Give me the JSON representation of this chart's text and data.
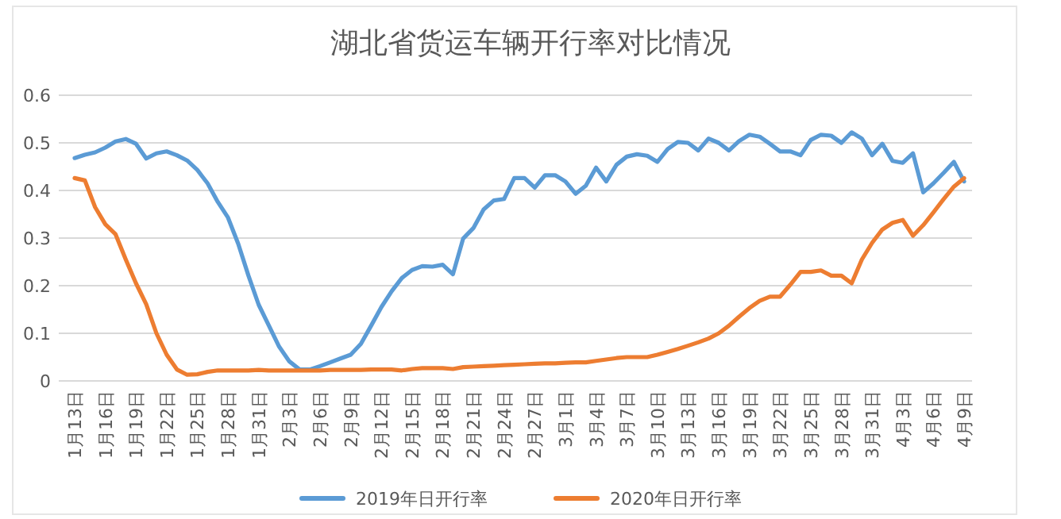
{
  "chart_data": {
    "type": "line",
    "title": "湖北省货运车辆开行率对比情况",
    "categories": [
      "1月13日",
      null,
      null,
      "1月16日",
      null,
      null,
      "1月19日",
      null,
      null,
      "1月22日",
      null,
      null,
      "1月25日",
      null,
      null,
      "1月28日",
      null,
      null,
      "1月31日",
      null,
      null,
      "2月3日",
      null,
      null,
      "2月6日",
      null,
      null,
      "2月9日",
      null,
      null,
      "2月12日",
      null,
      null,
      "2月15日",
      null,
      null,
      "2月18日",
      null,
      null,
      "2月21日",
      null,
      null,
      "2月24日",
      null,
      null,
      "2月27日",
      null,
      null,
      "3月1日",
      null,
      null,
      "3月4日",
      null,
      null,
      "3月7日",
      null,
      null,
      "3月10日",
      null,
      null,
      "3月13日",
      null,
      null,
      "3月16日",
      null,
      null,
      "3月19日",
      null,
      null,
      "3月22日",
      null,
      null,
      "3月25日",
      null,
      null,
      "3月28日",
      null,
      null,
      "3月31日",
      null,
      null,
      "4月3日",
      null,
      null,
      "4月6日",
      null,
      null,
      "4月9日"
    ],
    "series": [
      {
        "name": "2019年日开行率",
        "color": "#5b9bd5",
        "values": [
          0.468,
          0.475,
          0.48,
          0.49,
          0.503,
          0.508,
          0.498,
          0.467,
          0.478,
          0.482,
          0.474,
          0.463,
          0.443,
          0.415,
          0.376,
          0.343,
          0.288,
          0.221,
          0.16,
          0.116,
          0.072,
          0.041,
          0.024,
          0.024,
          0.031,
          0.039,
          0.047,
          0.055,
          0.078,
          0.116,
          0.155,
          0.188,
          0.216,
          0.233,
          0.241,
          0.24,
          0.244,
          0.224,
          0.299,
          0.321,
          0.36,
          0.379,
          0.382,
          0.426,
          0.426,
          0.406,
          0.432,
          0.432,
          0.419,
          0.393,
          0.41,
          0.448,
          0.419,
          0.454,
          0.471,
          0.476,
          0.473,
          0.46,
          0.487,
          0.502,
          0.5,
          0.484,
          0.509,
          0.5,
          0.484,
          0.504,
          0.517,
          0.513,
          0.498,
          0.482,
          0.482,
          0.474,
          0.506,
          0.517,
          0.515,
          0.5,
          0.522,
          0.509,
          0.474,
          0.498,
          0.462,
          0.458,
          0.478,
          0.396,
          0.415,
          0.437,
          0.46,
          0.419
        ]
      },
      {
        "name": "2020年日开行率",
        "color": "#ed7d31",
        "values": [
          0.426,
          0.421,
          0.365,
          0.329,
          0.308,
          0.255,
          0.205,
          0.161,
          0.1,
          0.055,
          0.024,
          0.013,
          0.014,
          0.019,
          0.022,
          0.022,
          0.022,
          0.022,
          0.023,
          0.022,
          0.022,
          0.022,
          0.022,
          0.022,
          0.022,
          0.023,
          0.023,
          0.023,
          0.023,
          0.024,
          0.024,
          0.024,
          0.022,
          0.025,
          0.027,
          0.027,
          0.027,
          0.025,
          0.029,
          0.03,
          0.031,
          0.032,
          0.033,
          0.034,
          0.035,
          0.036,
          0.037,
          0.037,
          0.038,
          0.039,
          0.039,
          0.042,
          0.045,
          0.048,
          0.05,
          0.05,
          0.05,
          0.055,
          0.061,
          0.067,
          0.074,
          0.081,
          0.089,
          0.1,
          0.116,
          0.135,
          0.153,
          0.168,
          0.177,
          0.177,
          0.202,
          0.229,
          0.229,
          0.232,
          0.221,
          0.221,
          0.205,
          0.255,
          0.29,
          0.318,
          0.332,
          0.338,
          0.305,
          0.327,
          0.354,
          0.382,
          0.408,
          0.426
        ]
      }
    ],
    "ylim": [
      0,
      0.6
    ],
    "yticks": [
      0,
      0.1,
      0.2,
      0.3,
      0.4,
      0.5,
      0.6
    ],
    "grid": "y",
    "legend": "bottom",
    "marker": "none",
    "line_style": "solid"
  }
}
